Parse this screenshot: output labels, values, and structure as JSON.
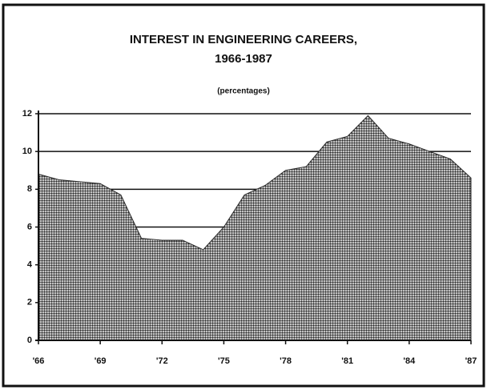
{
  "chart_data": {
    "type": "area",
    "title": [
      "INTEREST IN ENGINEERING CAREERS,",
      "1966-1987"
    ],
    "subtitle": "(percentages)",
    "x": [
      1966,
      1967,
      1968,
      1969,
      1970,
      1971,
      1972,
      1973,
      1974,
      1975,
      1976,
      1977,
      1978,
      1979,
      1980,
      1981,
      1982,
      1983,
      1984,
      1985,
      1986,
      1987
    ],
    "values": [
      8.8,
      8.5,
      8.4,
      8.3,
      7.7,
      5.4,
      5.3,
      5.3,
      4.8,
      6.0,
      7.7,
      8.2,
      9.0,
      9.2,
      10.5,
      10.8,
      11.9,
      10.7,
      10.4,
      10.0,
      9.6,
      8.6
    ],
    "color": "#2a2a2a",
    "xlim": [
      1966,
      1987
    ],
    "xticks": [
      {
        "value": 1966,
        "label": "'66"
      },
      {
        "value": 1969,
        "label": "'69"
      },
      {
        "value": 1972,
        "label": "'72"
      },
      {
        "value": 1975,
        "label": "'75"
      },
      {
        "value": 1978,
        "label": "'78"
      },
      {
        "value": 1981,
        "label": "'81"
      },
      {
        "value": 1984,
        "label": "'84"
      },
      {
        "value": 1987,
        "label": "'87"
      }
    ],
    "ylim": [
      0,
      12
    ],
    "yticks": [
      0,
      2,
      4,
      6,
      8,
      10,
      12
    ],
    "grid": true
  }
}
